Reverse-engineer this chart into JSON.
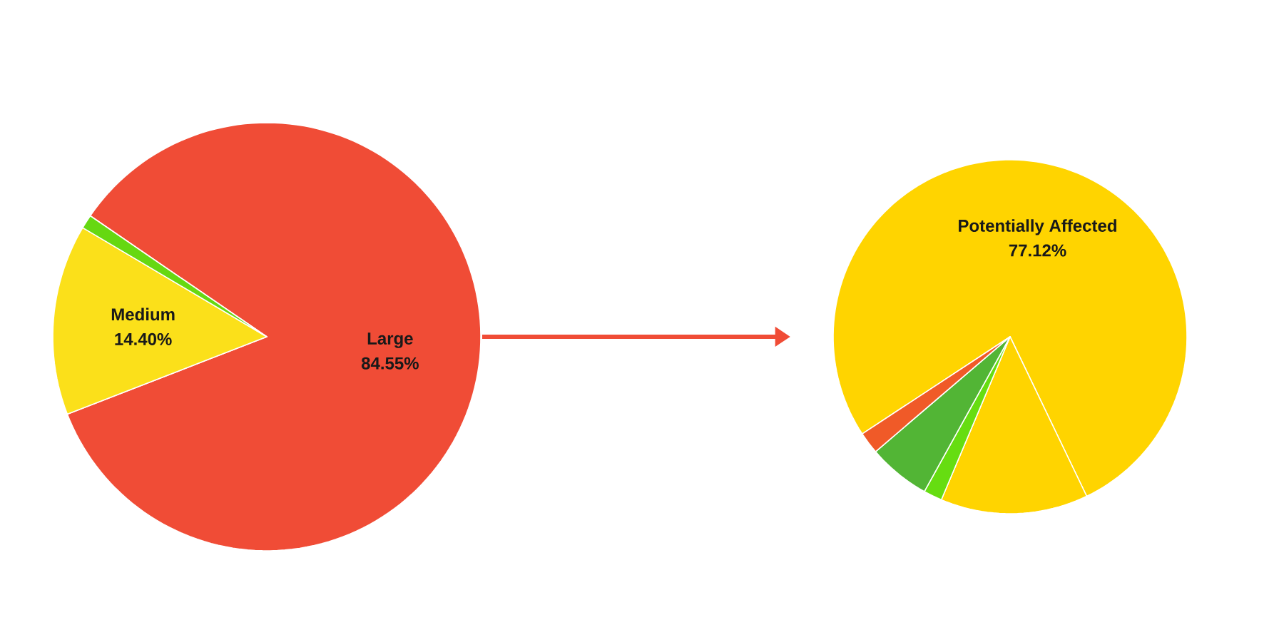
{
  "chart_data": [
    {
      "type": "pie",
      "categories": [
        "Large",
        "Medium",
        null
      ],
      "values": [
        84.55,
        14.4,
        1.05
      ],
      "colors": [
        "#f04c36",
        "#fbe01a",
        "#66d811"
      ],
      "value_labels": [
        "84.55%",
        "14.40%",
        null
      ]
    },
    {
      "type": "pie",
      "categories": [
        "Potentially Affected",
        null,
        null,
        null,
        null
      ],
      "values": [
        77.12,
        13.48,
        1.7,
        5.7,
        2.0
      ],
      "colors": [
        "#ffd400",
        "#ffd400",
        "#66dd11",
        "#52b535",
        "#f05a28"
      ],
      "value_labels": [
        "77.12%",
        null,
        null,
        null,
        null
      ]
    }
  ]
}
